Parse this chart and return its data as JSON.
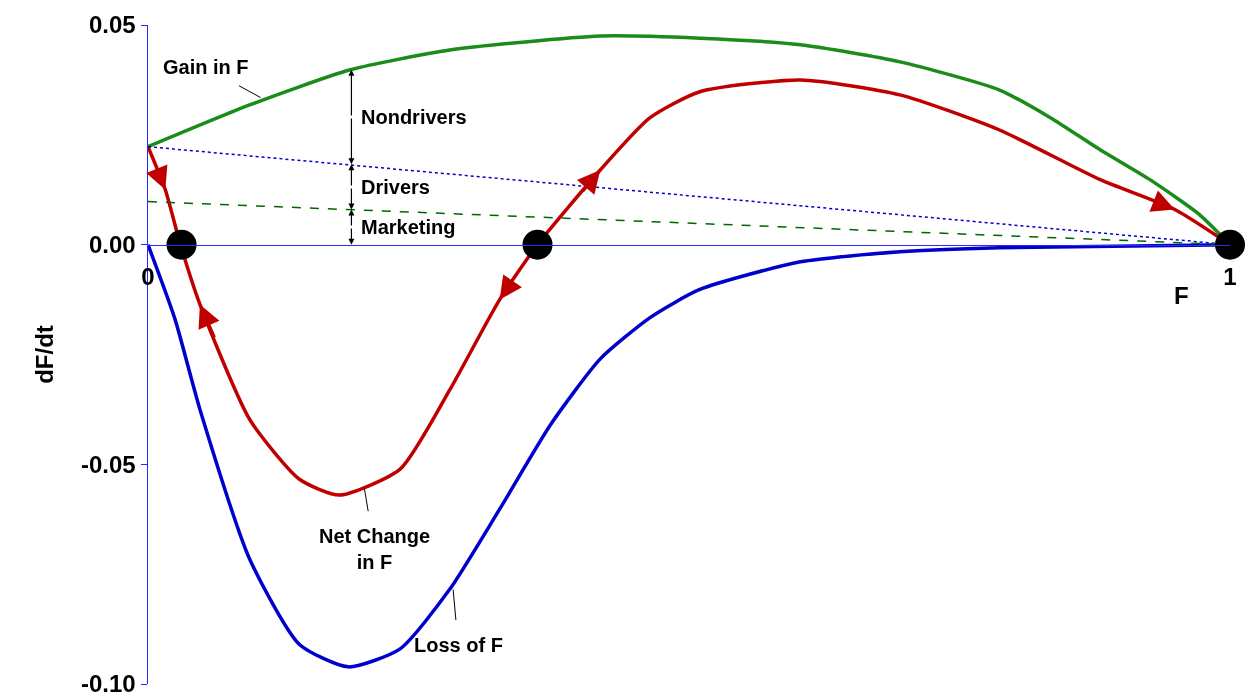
{
  "chart_data": {
    "type": "line",
    "xlabel": "F",
    "ylabel": "dF/dt",
    "xlim": [
      0,
      1
    ],
    "ylim": [
      -0.1,
      0.05
    ],
    "xticks": [
      0,
      1
    ],
    "yticks": [
      {
        "value": -0.1,
        "label": "-0.10"
      },
      {
        "value": -0.05,
        "label": "-0.05"
      },
      {
        "value": 0,
        "label": "0.00"
      },
      {
        "value": 0.05,
        "label": "0.05"
      }
    ],
    "grid": false,
    "series": [
      {
        "color": "#1a8c1a",
        "x": [
          0,
          0.094,
          0.187,
          0.279,
          0.418,
          0.51,
          0.603,
          0.695,
          0.787,
          0.834,
          0.88,
          0.926,
          0.972,
          1
        ],
        "values": [
          0.0223,
          0.0318,
          0.0398,
          0.0443,
          0.0475,
          0.047,
          0.0455,
          0.0416,
          0.0352,
          0.0289,
          0.0216,
          0.0148,
          0.0068,
          0
        ]
      },
      {
        "color": "#0000cc",
        "x": [
          0,
          0.025,
          0.048,
          0.094,
          0.14,
          0.185,
          0.233,
          0.279,
          0.325,
          0.372,
          0.418,
          0.464,
          0.51,
          0.603,
          0.695,
          0.787,
          1
        ],
        "values": [
          0,
          -0.017,
          -0.0375,
          -0.0716,
          -0.091,
          -0.0961,
          -0.092,
          -0.0784,
          -0.0602,
          -0.041,
          -0.026,
          -0.0166,
          -0.0102,
          -0.0039,
          -0.0016,
          -0.0007,
          0
        ]
      },
      {
        "color": "#c00000",
        "x": [
          0,
          0.016,
          0.03,
          0.048,
          0.094,
          0.14,
          0.177,
          0.233,
          0.279,
          0.325,
          0.36,
          0.418,
          0.464,
          0.51,
          0.603,
          0.695,
          0.787,
          0.88,
          0.949,
          1
        ],
        "values": [
          0.0223,
          0.0125,
          0,
          -0.0136,
          -0.0398,
          -0.0534,
          -0.057,
          -0.0511,
          -0.033,
          -0.0125,
          0,
          0.017,
          0.0289,
          0.0348,
          0.0375,
          0.0341,
          0.0261,
          0.0148,
          0.008,
          0
        ]
      },
      {
        "color": "#0000cc",
        "line_style": "dotted",
        "x": [
          0,
          1
        ],
        "values": [
          0.0223,
          0
        ]
      },
      {
        "color": "#006600",
        "line_style": "dashed",
        "x": [
          0,
          1
        ],
        "values": [
          0.0098,
          0
        ]
      },
      {
        "type": "scatter",
        "marker": "circle",
        "color": "#000000",
        "x": [
          0.031,
          0.36,
          1
        ],
        "values": [
          0,
          0,
          0
        ]
      }
    ],
    "annotations": [
      {
        "text": "Gain in F",
        "x": 0.104,
        "y": 0.0335
      },
      {
        "text": "Net Change\nin F",
        "x": 0.2,
        "y": -0.0555
      },
      {
        "text": "Loss of F",
        "x": 0.282,
        "y": -0.0785
      },
      {
        "text": "Nondrivers",
        "x": 0.188,
        "y": 0.0398
      },
      {
        "text": "Drivers",
        "x": 0.188,
        "y": 0.0183
      },
      {
        "text": "Marketing",
        "x": 0.188,
        "y": 0.008
      }
    ]
  }
}
